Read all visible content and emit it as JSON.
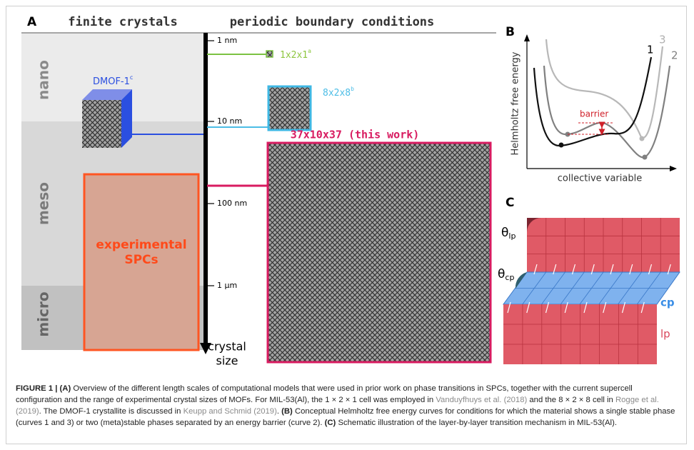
{
  "panel_a": {
    "label": "A",
    "header_left": "finite crystals",
    "header_right": "periodic boundary conditions",
    "regions": [
      "nano",
      "meso",
      "micro"
    ],
    "axis_ticks": [
      "1 nm",
      "10 nm",
      "100 nm",
      "1 μm"
    ],
    "axis_label": [
      "crystal",
      "size"
    ],
    "dmof": {
      "text": "DMOF-1",
      "sup": "c"
    },
    "cell_small": {
      "text": "1x2x1",
      "sup": "a"
    },
    "cell_medium": {
      "text": "8x2x8",
      "sup": "b"
    },
    "cell_large": "37x10x37 (this work)",
    "experimental": [
      "experimental",
      "SPCs"
    ]
  },
  "panel_b": {
    "label": "B",
    "y_label": "Helmholtz free energy",
    "x_label": "collective variable",
    "curve_labels": [
      "1",
      "3",
      "2"
    ],
    "barrier": "barrier"
  },
  "panel_c": {
    "label": "C",
    "theta_lp": {
      "symbol": "θ",
      "sub": "lp"
    },
    "theta_cp": {
      "symbol": "θ",
      "sub": "cp"
    },
    "cp": "cp",
    "lp": "lp"
  },
  "caption": {
    "segments": [
      {
        "text": "FIGURE 1 | (A)",
        "style": "bold"
      },
      {
        "text": " Overview of the different length scales of computational models that were used in prior work on phase transitions in SPCs, together with the current supercell configuration and the range of experimental crystal sizes of MOFs. For MIL-53(Al), the 1 × 2 × 1 cell was employed in ",
        "style": "plain"
      },
      {
        "text": "Vanduyfhuys et al. (2018)",
        "style": "link"
      },
      {
        "text": " and the 8 × 2 × 8 cell in ",
        "style": "plain"
      },
      {
        "text": "Rogge et al. (2019)",
        "style": "link"
      },
      {
        "text": ". The DMOF-1 crystallite is discussed in ",
        "style": "plain"
      },
      {
        "text": "Keupp and Schmid (2019)",
        "style": "link"
      },
      {
        "text": ". ",
        "style": "plain"
      },
      {
        "text": "(B)",
        "style": "bold"
      },
      {
        "text": " Conceptual Helmholtz free energy curves for conditions for which the material shows a single stable phase (curves 1 and 3) or two (meta)stable phases separated by an energy barrier (curve 2). ",
        "style": "plain"
      },
      {
        "text": "(C)",
        "style": "bold"
      },
      {
        "text": " Schematic illustration of the layer-by-layer transition mechanism in MIL-53(Al).",
        "style": "plain"
      }
    ]
  }
}
